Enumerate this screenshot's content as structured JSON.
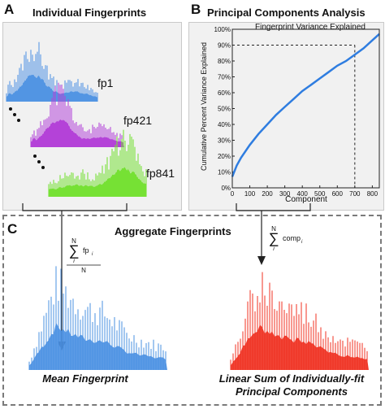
{
  "panel_a": {
    "letter": "A",
    "title": "Individual Fingerprints",
    "labels": [
      "fp1",
      "fp421",
      "fp841"
    ],
    "colors": [
      "#4a90e2",
      "#b03ad6",
      "#6fe02a"
    ]
  },
  "panel_b": {
    "letter": "B",
    "title": "Principal Components Analysis"
  },
  "panel_c": {
    "letter": "C",
    "title": "Aggregate Fingerprints",
    "sum_left": {
      "top": "N",
      "term": "fp",
      "sub": "i",
      "index": "i",
      "denominator": "N"
    },
    "sum_right": {
      "top": "N",
      "term": "comp",
      "sub": "i",
      "index": "i"
    },
    "caption_left": "Mean Fingerprint",
    "caption_right_line1": "Linear Sum of Individually-fit",
    "caption_right_line2": "Principal Components",
    "colors": {
      "mean": "#4a90e2",
      "sum": "#f03020"
    }
  },
  "chart_data": {
    "type": "line",
    "title": "Fingerprint Variance Explained",
    "xlabel": "Component",
    "ylabel": "Cumulative Percent Variance Explained",
    "xlim": [
      0,
      840
    ],
    "ylim": [
      0,
      100
    ],
    "xticks": [
      "0",
      "100",
      "200",
      "300",
      "400",
      "500",
      "600",
      "700",
      "800"
    ],
    "yticks": [
      "0%",
      "10%",
      "20%",
      "30%",
      "40%",
      "50%",
      "60%",
      "70%",
      "80%",
      "90%",
      "100%"
    ],
    "series": [
      {
        "color": "#2f7de0",
        "x": [
          0,
          25,
          50,
          100,
          150,
          200,
          250,
          300,
          350,
          400,
          450,
          500,
          550,
          600,
          650,
          700,
          750,
          800,
          840
        ],
        "y": [
          7,
          14,
          19,
          27,
          34,
          40,
          46,
          51,
          56,
          61,
          65,
          69,
          73,
          77,
          80,
          84,
          88,
          93,
          97
        ]
      }
    ],
    "reference": {
      "x": 700,
      "y": 90
    },
    "grid": false
  }
}
